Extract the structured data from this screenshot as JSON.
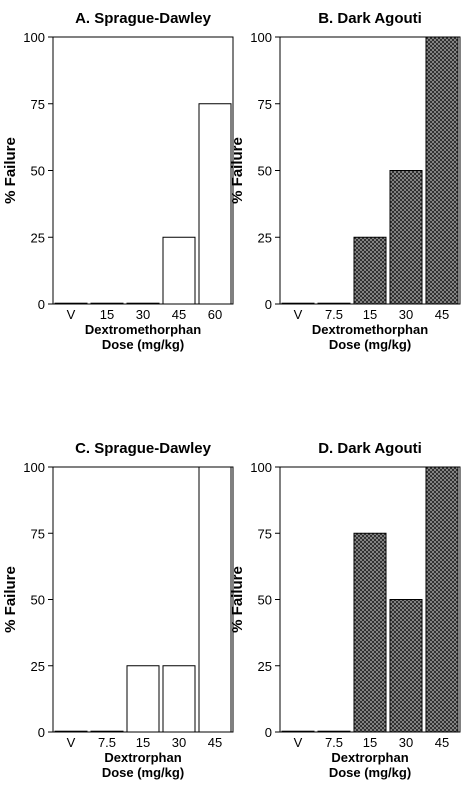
{
  "colors": {
    "axis": "#000000",
    "open_fill": "#ffffff",
    "hatch_fill": "#9a9a9a",
    "hatch_line": "#222222"
  },
  "chart_data": [
    {
      "type": "bar",
      "title": "A. Sprague-Dawley",
      "ylabel": "% Failure",
      "xlabel": [
        "Dextromethorphan",
        "Dose (mg/kg)"
      ],
      "categories": [
        "V",
        "15",
        "30",
        "45",
        "60"
      ],
      "values": [
        0,
        0,
        0,
        25,
        75
      ],
      "yticks": [
        "0",
        "25",
        "50",
        "75",
        "100"
      ],
      "ylim": [
        0,
        100
      ],
      "fill": "open",
      "grid": false,
      "legend": false
    },
    {
      "type": "bar",
      "title": "B. Dark Agouti",
      "ylabel": "% Failure",
      "xlabel": [
        "Dextromethorphan",
        "Dose (mg/kg)"
      ],
      "categories": [
        "V",
        "7.5",
        "15",
        "30",
        "45"
      ],
      "values": [
        0,
        0,
        25,
        50,
        100
      ],
      "yticks": [
        "0",
        "25",
        "50",
        "75",
        "100"
      ],
      "ylim": [
        0,
        100
      ],
      "fill": "hatched",
      "grid": false,
      "legend": false
    },
    {
      "type": "bar",
      "title": "C. Sprague-Dawley",
      "ylabel": "% Failure",
      "xlabel": [
        "Dextrorphan",
        "Dose (mg/kg)"
      ],
      "categories": [
        "V",
        "7.5",
        "15",
        "30",
        "45"
      ],
      "values": [
        0,
        0,
        25,
        25,
        100
      ],
      "yticks": [
        "0",
        "25",
        "50",
        "75",
        "100"
      ],
      "ylim": [
        0,
        100
      ],
      "fill": "open",
      "grid": false,
      "legend": false
    },
    {
      "type": "bar",
      "title": "D. Dark Agouti",
      "ylabel": "% Failure",
      "xlabel": [
        "Dextrorphan",
        "Dose (mg/kg)"
      ],
      "categories": [
        "V",
        "7.5",
        "15",
        "30",
        "45"
      ],
      "values": [
        0,
        0,
        75,
        50,
        100
      ],
      "yticks": [
        "0",
        "25",
        "50",
        "75",
        "100"
      ],
      "ylim": [
        0,
        100
      ],
      "fill": "hatched",
      "grid": false,
      "legend": false
    }
  ]
}
